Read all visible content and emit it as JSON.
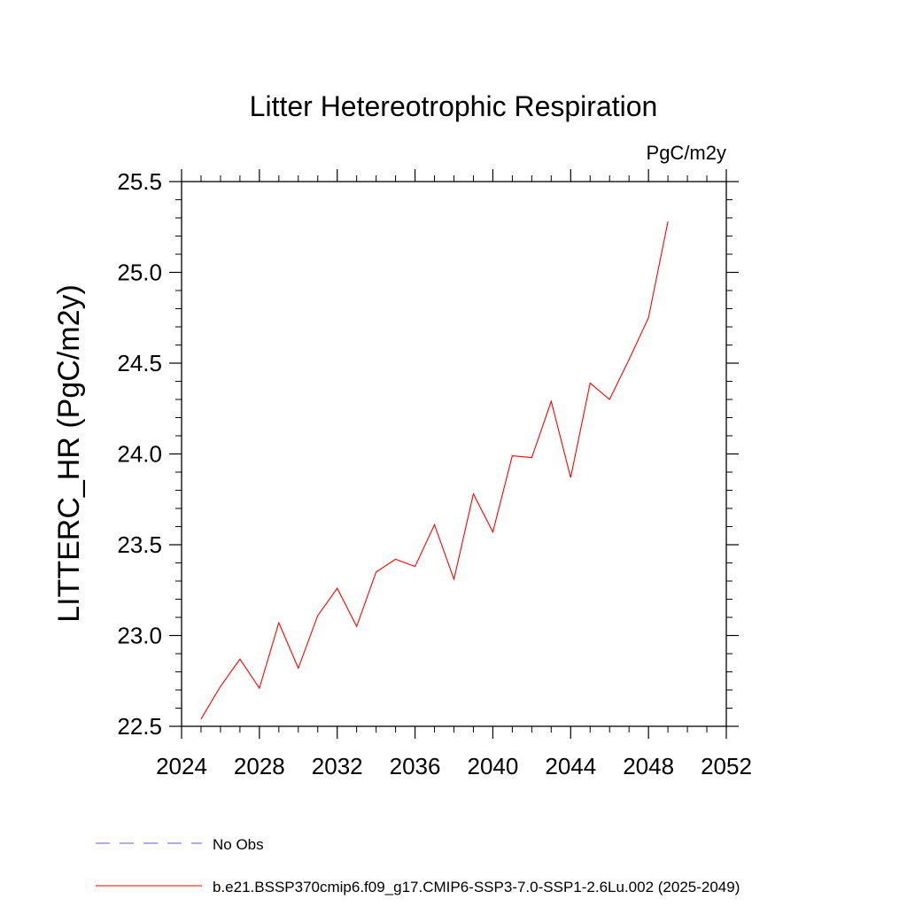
{
  "chart_data": {
    "type": "line",
    "title": "Litter Hetereotrophic Respiration",
    "units_label": "PgC/m2y",
    "xlabel": "",
    "ylabel": "LITTERC_HR  (PgC/m2y)",
    "xlim": [
      2024,
      2052
    ],
    "ylim": [
      22.5,
      25.5
    ],
    "x_ticks": [
      2024,
      2028,
      2032,
      2036,
      2040,
      2044,
      2048,
      2052
    ],
    "x_tick_labels": [
      "2024",
      "2028",
      "2032",
      "2036",
      "2040",
      "2044",
      "2048",
      "2052"
    ],
    "y_ticks": [
      22.5,
      23.0,
      23.5,
      24.0,
      24.5,
      25.0,
      25.5
    ],
    "y_tick_labels": [
      "22.5",
      "23.0",
      "23.5",
      "24.0",
      "24.5",
      "25.0",
      "25.5"
    ],
    "grid": false,
    "series": [
      {
        "name": "b.e21.BSSP370cmip6.f09_g17.CMIP6-SSP3-7.0-SSP1-2.6Lu.002 (2025-2049)",
        "color": "#ff0000",
        "style": "solid",
        "x": [
          2025,
          2026,
          2027,
          2028,
          2029,
          2030,
          2031,
          2032,
          2033,
          2034,
          2035,
          2036,
          2037,
          2038,
          2039,
          2040,
          2041,
          2042,
          2043,
          2044,
          2045,
          2046,
          2047,
          2048,
          2049
        ],
        "y": [
          22.54,
          22.72,
          22.87,
          22.71,
          23.07,
          22.82,
          23.11,
          23.26,
          23.05,
          23.35,
          23.42,
          23.38,
          23.61,
          23.31,
          23.78,
          23.57,
          23.99,
          23.98,
          24.29,
          23.87,
          24.39,
          24.3,
          24.52,
          24.75,
          25.28
        ]
      }
    ],
    "legend": [
      {
        "label": "No Obs",
        "color": "#6a5acd",
        "style": "dashed"
      },
      {
        "label": "b.e21.BSSP370cmip6.f09_g17.CMIP6-SSP3-7.0-SSP1-2.6Lu.002 (2025-2049)",
        "color": "#ff0000",
        "style": "solid"
      }
    ],
    "legend_position": "bottom"
  }
}
